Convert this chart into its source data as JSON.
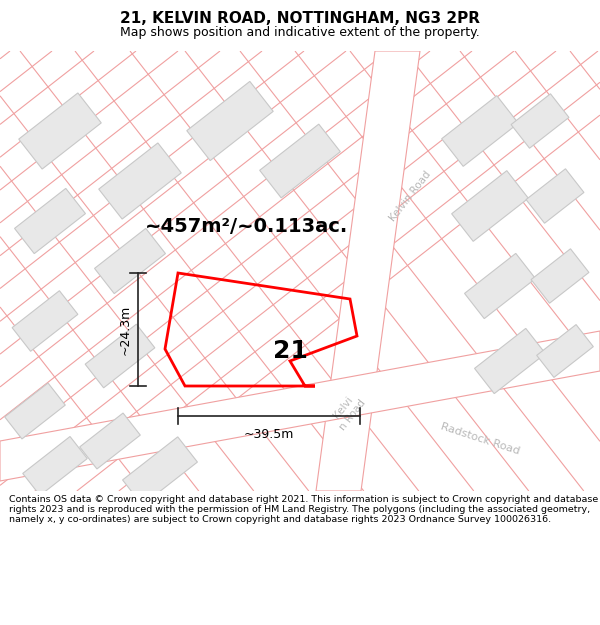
{
  "title_line1": "21, KELVIN ROAD, NOTTINGHAM, NG3 2PR",
  "title_line2": "Map shows position and indicative extent of the property.",
  "area_text": "~457m²/~0.113ac.",
  "label_number": "21",
  "dim_width": "~39.5m",
  "dim_height": "~24.3m",
  "footer_text": "Contains OS data © Crown copyright and database right 2021. This information is subject to Crown copyright and database rights 2023 and is reproduced with the permission of HM Land Registry. The polygons (including the associated geometry, namely x, y co-ordinates) are subject to Crown copyright and database rights 2023 Ordnance Survey 100026316.",
  "bg_color": "#ffffff",
  "map_bg": "#ffffff",
  "building_fill": "#e8e8e8",
  "building_edge": "#c8c8c8",
  "road_line_color": "#f0a0a0",
  "road_fill": "#ffffff",
  "road_label_color": "#b8b8b8",
  "highlight_color": "#ff0000",
  "dim_color": "#222222",
  "title_fontsize": 11,
  "subtitle_fontsize": 9,
  "area_fontsize": 14,
  "number_fontsize": 18,
  "dim_fontsize": 9,
  "footer_fontsize": 6.8
}
